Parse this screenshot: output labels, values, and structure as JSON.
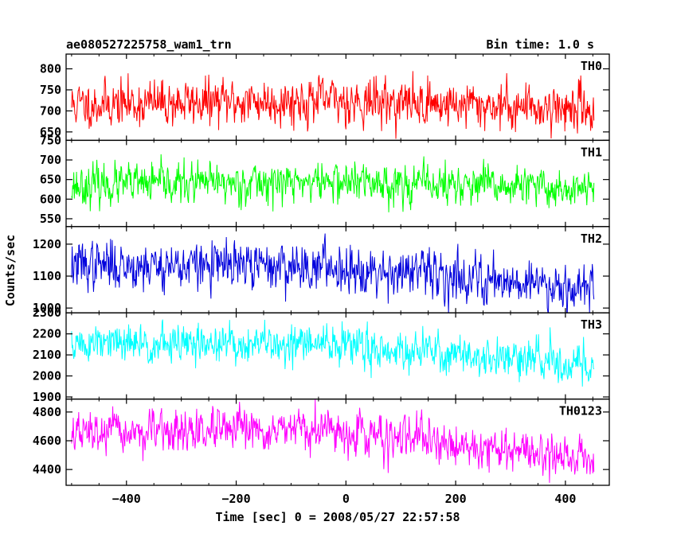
{
  "chart_data": {
    "type": "line",
    "title_left": "ae080527225758_wam1_trn",
    "title_right": "Bin time: 1.0 s",
    "xlabel": "Time [sec] 0 = 2008/05/27 22:57:58",
    "ylabel": "Counts/sec",
    "xlim": [
      -510,
      480
    ],
    "x_start": -500,
    "x_end": 452,
    "x_step": 1,
    "xticks": [
      -400,
      -200,
      0,
      200,
      400
    ],
    "xtick_labels": [
      "−400",
      "−200",
      "0",
      "200",
      "400"
    ],
    "grid": false,
    "panels": [
      {
        "name": "TH0",
        "color": "#ff0000",
        "ylim": [
          630,
          835
        ],
        "yticks": [
          650,
          700,
          750,
          800
        ],
        "ytick_labels": [
          "650",
          "700",
          "750",
          "800"
        ],
        "level_start": 715,
        "level_mid": 725,
        "level_end": 705,
        "noise_sd": 28,
        "seed": 11
      },
      {
        "name": "TH1",
        "color": "#00ff00",
        "ylim": [
          530,
          750
        ],
        "yticks": [
          550,
          600,
          650,
          700,
          750
        ],
        "ytick_labels": [
          "550",
          "600",
          "650",
          "700",
          "750"
        ],
        "level_start": 635,
        "level_mid": 645,
        "level_end": 625,
        "noise_sd": 26,
        "seed": 23
      },
      {
        "name": "TH2",
        "color": "#0000dd",
        "ylim": [
          985,
          1255
        ],
        "yticks": [
          1000,
          1100,
          1200
        ],
        "ytick_labels": [
          "1000",
          "1100",
          "1200"
        ],
        "level_start": 1135,
        "level_mid": 1130,
        "level_end": 1065,
        "noise_sd": 38,
        "seed": 37
      },
      {
        "name": "TH3",
        "color": "#00ffff",
        "ylim": [
          1890,
          2300
        ],
        "yticks": [
          1900,
          2000,
          2100,
          2200,
          2300
        ],
        "ytick_labels": [
          "1900",
          "2000",
          "2100",
          "2200",
          "2300"
        ],
        "level_start": 2150,
        "level_mid": 2150,
        "level_end": 2050,
        "noise_sd": 48,
        "seed": 51
      },
      {
        "name": "TH0123",
        "color": "#ff00ff",
        "ylim": [
          4290,
          4890
        ],
        "yticks": [
          4400,
          4600,
          4800
        ],
        "ytick_labels": [
          "4400",
          "4600",
          "4800"
        ],
        "level_start": 4650,
        "level_mid": 4670,
        "level_end": 4470,
        "noise_sd": 72,
        "seed": 67
      }
    ]
  }
}
